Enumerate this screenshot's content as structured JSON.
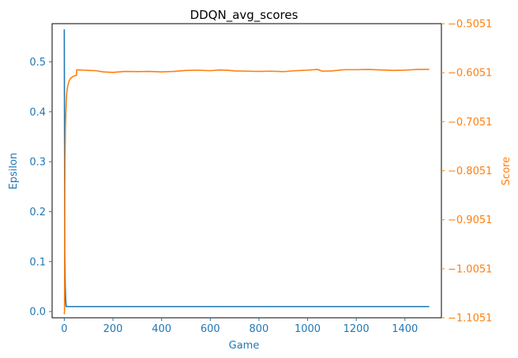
{
  "chart_data": {
    "type": "line",
    "title": "DDQN_avg_scores",
    "xlabel": "Game",
    "ylabel_left": "Epsilon",
    "ylabel_right": "Score",
    "xlim": [
      -50,
      1550
    ],
    "ylim_left": [
      -0.0125,
      0.5765
    ],
    "ylim_right": [
      -1.1051,
      -0.5051
    ],
    "x_ticks": [
      0,
      200,
      400,
      600,
      800,
      1000,
      1200,
      1400
    ],
    "x_tick_labels": [
      "0",
      "200",
      "400",
      "600",
      "800",
      "1000",
      "1200",
      "1400"
    ],
    "left_ticks": [
      0.0,
      0.1,
      0.2,
      0.3,
      0.4,
      0.5
    ],
    "left_tick_labels": [
      "0.0",
      "0.1",
      "0.2",
      "0.3",
      "0.4",
      "0.5"
    ],
    "right_ticks": [
      -1.1051,
      -1.0051,
      -0.9051,
      -0.8051,
      -0.7051,
      -0.6051,
      -0.5051
    ],
    "right_tick_labels": [
      "−1.1051",
      "−1.0051",
      "−0.9051",
      "−0.8051",
      "−0.7051",
      "−0.6051",
      "−0.5051"
    ],
    "grid": false,
    "colors": {
      "epsilon": "#1f77b4",
      "score": "#ff7f0e",
      "axis": "#000000"
    },
    "series": [
      {
        "axis": "left",
        "x": [
          0,
          1,
          2,
          4,
          6,
          8,
          1500
        ],
        "values": [
          0.565,
          0.35,
          0.12,
          0.05,
          0.02,
          0.01,
          0.01
        ]
      },
      {
        "axis": "right",
        "x": [
          0,
          1,
          2,
          3,
          5,
          8,
          10,
          13,
          17,
          20,
          25,
          30,
          35,
          40,
          45,
          50,
          51,
          60,
          80,
          100,
          130,
          160,
          200,
          250,
          300,
          350,
          400,
          450,
          500,
          550,
          600,
          640,
          680,
          700,
          750,
          800,
          850,
          900,
          950,
          1000,
          1040,
          1060,
          1100,
          1150,
          1200,
          1250,
          1300,
          1350,
          1400,
          1450,
          1500
        ],
        "values": [
          -1.098,
          -1.09,
          -0.88,
          -0.78,
          -0.71,
          -0.665,
          -0.648,
          -0.635,
          -0.627,
          -0.622,
          -0.617,
          -0.615,
          -0.613,
          -0.612,
          -0.611,
          -0.611,
          -0.5993,
          -0.5995,
          -0.6,
          -0.6005,
          -0.601,
          -0.6035,
          -0.6045,
          -0.6025,
          -0.603,
          -0.6025,
          -0.6035,
          -0.6025,
          -0.6005,
          -0.6,
          -0.601,
          -0.5995,
          -0.6005,
          -0.6015,
          -0.602,
          -0.6025,
          -0.602,
          -0.603,
          -0.601,
          -0.6,
          -0.5985,
          -0.602,
          -0.6015,
          -0.599,
          -0.599,
          -0.5985,
          -0.5995,
          -0.6005,
          -0.6,
          -0.5985,
          -0.5983
        ]
      }
    ]
  }
}
